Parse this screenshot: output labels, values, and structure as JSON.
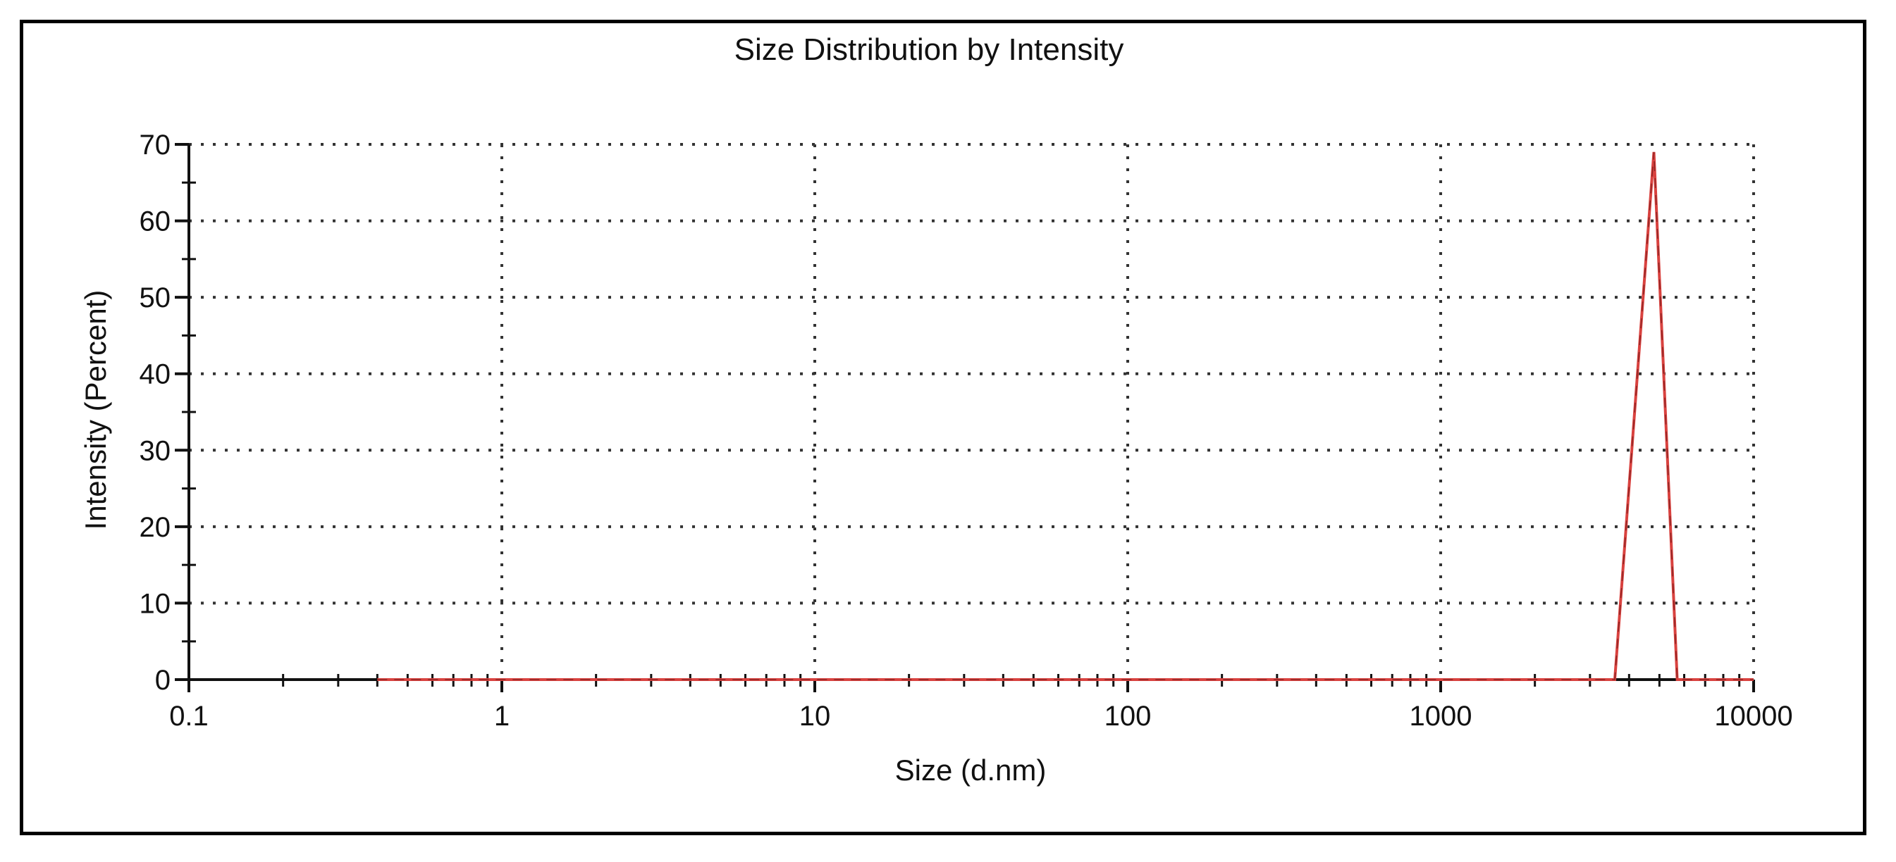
{
  "chart_data": {
    "type": "line",
    "title": "Size Distribution by Intensity",
    "xlabel": "Size (d.nm)",
    "ylabel": "Intensity (Percent)",
    "x_scale": "log",
    "xlim": [
      0.1,
      10000
    ],
    "ylim": [
      0,
      70
    ],
    "x_ticks": [
      0.1,
      1,
      10,
      100,
      1000,
      10000
    ],
    "x_tick_labels": [
      "0.1",
      "1",
      "10",
      "100",
      "1000",
      "10000"
    ],
    "y_ticks": [
      0,
      10,
      20,
      30,
      40,
      50,
      60,
      70
    ],
    "y_tick_labels": [
      "0",
      "10",
      "20",
      "30",
      "40",
      "50",
      "60",
      "70"
    ],
    "grid": true,
    "grid_style": "dotted",
    "legend": "none",
    "series": [
      {
        "color": "#d9423f",
        "x": [
          0.4,
          3600,
          4800,
          5700,
          10000
        ],
        "y": [
          0,
          0,
          69,
          0,
          0
        ]
      }
    ]
  }
}
